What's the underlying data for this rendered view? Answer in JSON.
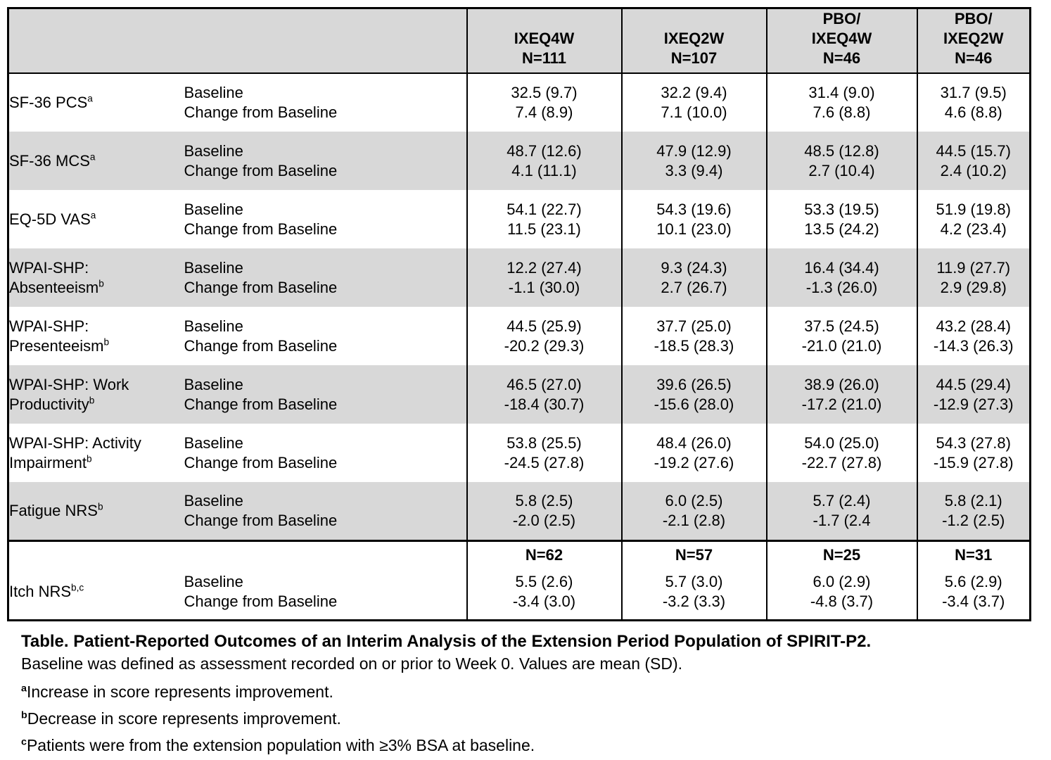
{
  "colors": {
    "shaded_row": "#d8d8d8",
    "border": "#000000",
    "background": "#ffffff",
    "text": "#000000"
  },
  "table": {
    "header": {
      "columns": [
        {
          "lines": [
            "IXEQ4W",
            "N=111"
          ]
        },
        {
          "lines": [
            "IXEQ2W",
            "N=107"
          ]
        },
        {
          "lines": [
            "PBO/",
            "IXEQ4W",
            "N=46"
          ]
        },
        {
          "lines": [
            "PBO/",
            "IXEQ2W",
            "N=46"
          ]
        }
      ]
    },
    "measure_labels": [
      "Baseline",
      "Change from Baseline"
    ],
    "rows": [
      {
        "label_lines": [
          "SF-36 PCS"
        ],
        "sup": "a",
        "shaded": false,
        "values": [
          [
            "32.5 (9.7)",
            "7.4 (8.9)"
          ],
          [
            "32.2 (9.4)",
            "7.1 (10.0)"
          ],
          [
            "31.4 (9.0)",
            "7.6 (8.8)"
          ],
          [
            "31.7 (9.5)",
            "4.6 (8.8)"
          ]
        ]
      },
      {
        "label_lines": [
          "SF-36 MCS"
        ],
        "sup": "a",
        "shaded": true,
        "values": [
          [
            "48.7 (12.6)",
            "4.1 (11.1)"
          ],
          [
            "47.9 (12.9)",
            "3.3 (9.4)"
          ],
          [
            "48.5 (12.8)",
            "2.7 (10.4)"
          ],
          [
            "44.5 (15.7)",
            "2.4 (10.2)"
          ]
        ]
      },
      {
        "label_lines": [
          "EQ-5D VAS"
        ],
        "sup": "a",
        "shaded": false,
        "values": [
          [
            "54.1 (22.7)",
            "11.5 (23.1)"
          ],
          [
            "54.3 (19.6)",
            "10.1 (23.0)"
          ],
          [
            "53.3 (19.5)",
            "13.5 (24.2)"
          ],
          [
            "51.9 (19.8)",
            "4.2 (23.4)"
          ]
        ]
      },
      {
        "label_lines": [
          "WPAI-SHP:",
          "Absenteeism"
        ],
        "sup": "b",
        "shaded": true,
        "values": [
          [
            "12.2 (27.4)",
            "-1.1 (30.0)"
          ],
          [
            "9.3 (24.3)",
            "2.7 (26.7)"
          ],
          [
            "16.4 (34.4)",
            "-1.3 (26.0)"
          ],
          [
            "11.9 (27.7)",
            "2.9 (29.8)"
          ]
        ]
      },
      {
        "label_lines": [
          "WPAI-SHP:",
          "Presenteeism"
        ],
        "sup": "b",
        "shaded": false,
        "values": [
          [
            "44.5 (25.9)",
            "-20.2 (29.3)"
          ],
          [
            "37.7 (25.0)",
            "-18.5 (28.3)"
          ],
          [
            "37.5 (24.5)",
            "-21.0 (21.0)"
          ],
          [
            "43.2 (28.4)",
            "-14.3 (26.3)"
          ]
        ]
      },
      {
        "label_lines": [
          "WPAI-SHP: Work",
          "Productivity"
        ],
        "sup": "b",
        "shaded": true,
        "values": [
          [
            "46.5 (27.0)",
            "-18.4 (30.7)"
          ],
          [
            "39.6 (26.5)",
            "-15.6 (28.0)"
          ],
          [
            "38.9 (26.0)",
            "-17.2 (21.0)"
          ],
          [
            "44.5 (29.4)",
            "-12.9 (27.3)"
          ]
        ]
      },
      {
        "label_lines": [
          "WPAI-SHP: Activity",
          "Impairment"
        ],
        "sup": "b",
        "shaded": false,
        "values": [
          [
            "53.8 (25.5)",
            "-24.5 (27.8)"
          ],
          [
            "48.4 (26.0)",
            "-19.2 (27.6)"
          ],
          [
            "54.0 (25.0)",
            "-22.7 (27.8)"
          ],
          [
            "54.3 (27.8)",
            "-15.9 (27.8)"
          ]
        ]
      },
      {
        "label_lines": [
          "Fatigue NRS"
        ],
        "sup": "b",
        "shaded": true,
        "values": [
          [
            "5.8 (2.5)",
            "-2.0 (2.5)"
          ],
          [
            "6.0 (2.5)",
            "-2.1 (2.8)"
          ],
          [
            "5.7 (2.4)",
            "-1.7 (2.4"
          ],
          [
            "5.8 (2.1)",
            "-1.2 (2.5)"
          ]
        ]
      }
    ],
    "bottom_section": {
      "label_lines": [
        "Itch NRS"
      ],
      "sup": "b,c",
      "shaded": false,
      "sub_n": [
        "N=62",
        "N=57",
        "N=25",
        "N=31"
      ],
      "values": [
        [
          "5.5 (2.6)",
          "-3.4 (3.0)"
        ],
        [
          "5.7 (3.0)",
          "-3.2 (3.3)"
        ],
        [
          "6.0 (2.9)",
          "-4.8 (3.7)"
        ],
        [
          "5.6 (2.9)",
          "-3.4 (3.7)"
        ]
      ]
    }
  },
  "caption": {
    "title": "Table. Patient-Reported Outcomes of an Interim Analysis of the Extension Period Population of SPIRIT-P2.",
    "subtitle": "Baseline was defined as assessment recorded on or prior to Week 0. Values are mean (SD).",
    "footnotes": [
      {
        "marker": "a",
        "text": "Increase in score represents improvement."
      },
      {
        "marker": "b",
        "text": "Decrease in score represents improvement."
      },
      {
        "marker": "c",
        "text": "Patients were from the extension population with ≥3% BSA at baseline."
      }
    ]
  }
}
